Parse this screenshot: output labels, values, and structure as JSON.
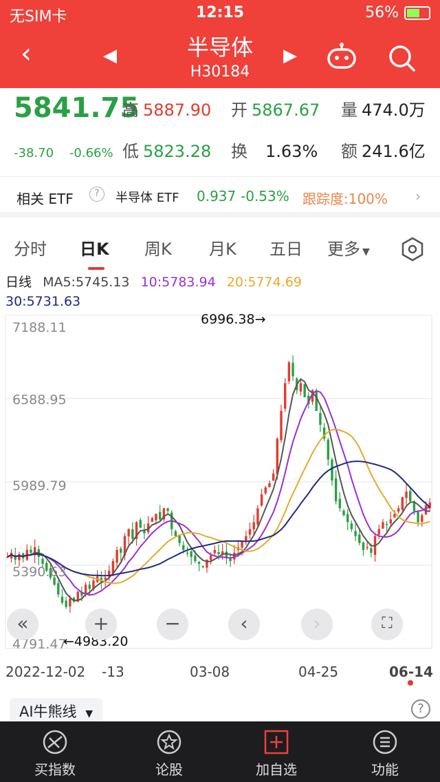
{
  "status": {
    "carrier": "无SIM卡",
    "time": "12:15",
    "battery": "56%"
  },
  "nav": {
    "title": "半导体",
    "code": "H30184"
  },
  "quote": {
    "price": "5841.75",
    "change": "-38.70",
    "change_pct": "-0.66%",
    "high_label": "高",
    "high": "5887.90",
    "open_label": "开",
    "open": "5867.67",
    "volume_label": "量",
    "volume": "474.0万",
    "low_label": "低",
    "low": "5823.28",
    "turnover_label": "换",
    "turnover": "1.63%",
    "amount_label": "额",
    "amount": "241.6亿"
  },
  "etf": {
    "label": "相关 ETF",
    "name": "半导体 ETF",
    "price": "0.937",
    "pct": "-0.53%",
    "tracking": "跟踪度:100%"
  },
  "tabs": [
    "分时",
    "日K",
    "周K",
    "月K",
    "五日",
    "更多"
  ],
  "ma": {
    "title": "日线",
    "ma5": "MA5:5745.13",
    "ma10": "10:5783.94",
    "ma20": "20:5774.69",
    "ma30": "30:5731.63"
  },
  "chart": {
    "y_labels": [
      "7188.11",
      "6588.95",
      "5989.79",
      "5390.63",
      "4791.47"
    ],
    "high_mark": "6996.38→",
    "low_mark": "←4983.20",
    "x_labels": [
      "2022-12-02",
      "-13",
      "03-08",
      "04-25",
      "06-14"
    ]
  },
  "chart_data": {
    "type": "candlestick",
    "ylim": [
      4791.47,
      7188.11
    ],
    "x": [
      "2022-12-02",
      "03-08",
      "04-25",
      "06-14"
    ],
    "y_ticks": [
      7188.11,
      6588.95,
      5989.79,
      5390.63,
      4791.47
    ],
    "max_annotation": 6996.38,
    "min_annotation": 4983.2,
    "ma_latest": {
      "MA5": 5745.13,
      "MA10": 5783.94,
      "MA20": 5774.69,
      "MA30": 5731.63
    },
    "series_close_approx": [
      5450,
      5480,
      5430,
      5470,
      5440,
      5500,
      5480,
      5520,
      5450,
      5400,
      5350,
      5300,
      5250,
      5180,
      5120,
      5090,
      5150,
      5130,
      5200,
      5170,
      5250,
      5220,
      5280,
      5310,
      5270,
      5300,
      5350,
      5420,
      5500,
      5480,
      5600,
      5650,
      5580,
      5700,
      5660,
      5620,
      5690,
      5730,
      5760,
      5720,
      5800,
      5780,
      5650,
      5600,
      5550,
      5500,
      5480,
      5450,
      5420,
      5400,
      5380,
      5430,
      5460,
      5500,
      5470,
      5490,
      5450,
      5420,
      5480,
      5520,
      5560,
      5600,
      5650,
      5700,
      5800,
      5900,
      5950,
      5980,
      6050,
      6300,
      6500,
      6700,
      6850,
      6750,
      6650,
      6700,
      6600,
      6550,
      6650,
      6500,
      6400,
      6300,
      6150,
      6000,
      5850,
      5800,
      5750,
      5700,
      5650,
      5600,
      5550,
      5500,
      5520,
      5480,
      5600,
      5650,
      5700,
      5680,
      5720,
      5760,
      5800,
      5880,
      5920,
      5850,
      5780,
      5700,
      5750,
      5820,
      5841.75
    ],
    "ma_colors": {
      "MA5": "#555555",
      "MA10": "#9a2fd2",
      "MA20": "#e8a82a",
      "MA30": "#1e2a80"
    }
  },
  "colors": {
    "up": "#e23b2f",
    "down": "#2aa044",
    "accent": "#f0403a"
  },
  "bottom": {
    "items": [
      "买指数",
      "论股",
      "加自选",
      "功能"
    ]
  },
  "ai": {
    "label": "AI牛熊线"
  }
}
